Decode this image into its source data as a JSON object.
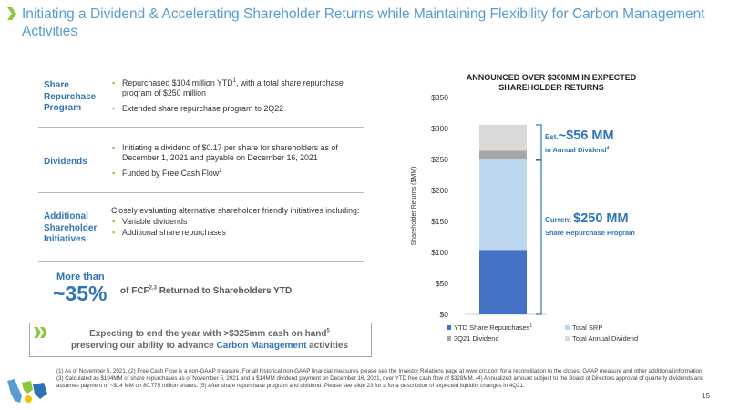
{
  "title": "Initiating a Dividend & Accelerating Shareholder Returns while Maintaining Flexibility for Carbon Management Activities",
  "rows": {
    "share": {
      "label": "Share Repurchase Program",
      "b1": "Repurchased $104 million YTD",
      "b1_sup": "1",
      "b1_rest": ", with a total share repurchase program of $250 million",
      "b2": "Extended share repurchase program to 2Q22"
    },
    "dividends": {
      "label": "Dividends",
      "b1": "Initiating a dividend of $0.17 per share for shareholders as of December 1, 2021 and payable on December 16, 2021",
      "b2": "Funded by Free Cash Flow",
      "b2_sup": "2"
    },
    "additional": {
      "label": "Additional Shareholder Initiatives",
      "intro": "Closely evaluating alternative shareholder friendly initiatives including:",
      "b1": "Variable dividends",
      "b2": "Additional share repurchases"
    }
  },
  "fcf": {
    "more": "More than",
    "pct": "~35%",
    "text_a": "of FCF",
    "text_sup": "2,3",
    "text_b": " Returned to Shareholders YTD"
  },
  "cash": {
    "line1": "Expecting to end the year with >$325mm cash on hand",
    "line1_sup": "5",
    "line2_a": "preserving our ability to advance ",
    "line2_hl": "Carbon Management",
    "line2_b": " activities"
  },
  "chart_data": {
    "type": "bar",
    "stacked": true,
    "title": "ANNOUNCED OVER $300MM IN EXPECTED SHAREHOLDER RETURNS",
    "ylabel": "Shareholder Returns ($MM)",
    "ylim": [
      0,
      350
    ],
    "yticks": [
      0,
      50,
      100,
      150,
      200,
      250,
      300,
      350
    ],
    "ytick_labels": [
      "$0",
      "$50",
      "$100",
      "$150",
      "$200",
      "$250",
      "$300",
      "$350"
    ],
    "categories": [
      ""
    ],
    "series": [
      {
        "name": "YTD Share Repurchases",
        "sup": "1",
        "values": [
          104
        ],
        "color": "#4472c4"
      },
      {
        "name": "Total SRP",
        "values": [
          146
        ],
        "color": "#bdd7ee"
      },
      {
        "name": "3Q21 Dividend",
        "values": [
          14
        ],
        "color": "#a6a6a6"
      },
      {
        "name": "Total Annual Dividend",
        "values": [
          42
        ],
        "color": "#d9d9d9"
      }
    ],
    "annotations": {
      "dividend": {
        "prefix": "Est.",
        "value": "~$56 MM",
        "caption": "in Annual Dividend",
        "sup": "4"
      },
      "srp": {
        "prefix": "Current ",
        "value": "$250 MM",
        "caption": "Share Repurchase Program"
      }
    }
  },
  "footnote": "(1) As of November 5, 2021. (2) Free Cash Flow is a non-GAAP measure. For all historical non-GAAP financial measures please see the Investor Relations page at www.crc.com for a reconciliation to the closest GAAP measure and other additional information. (3) Calculated as $104MM of share repurchases as of November 5, 2021 and a $14MM dividend payment on December 16, 2021, over YTD free cash flow of $328MM. (4) Annualized amount subject to the Board of Directors approval of quarterly dividends and assumes payment of ~$14 MM on 80.775 million shares. (5) After share repurchase program and dividend. Please see slide 23 for a for a description of expected liquidity changes in 4Q21.",
  "page_number": "15",
  "colors": {
    "accent": "#5a9bd5",
    "label": "#2e74b5",
    "bullet": "#8cc63f"
  }
}
